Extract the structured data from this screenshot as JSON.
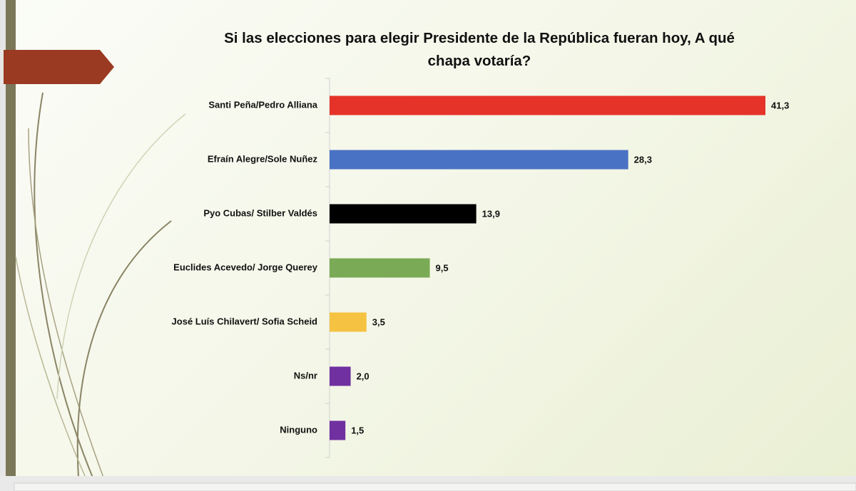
{
  "chart_data": {
    "type": "bar",
    "orientation": "horizontal",
    "title": "Si las elecciones para elegir Presidente de la República fueran hoy, A qué chapa votaría?",
    "categories": [
      "Santi Peña/Pedro Alliana",
      "Efraín Alegre/Sole Nuñez",
      "Pyo Cubas/ Stilber Valdés",
      "Euclides Acevedo/ Jorge Querey",
      "José Luís Chilavert/ Sofia Scheid",
      "Ns/nr",
      "Ninguno"
    ],
    "values": [
      41.3,
      28.3,
      13.9,
      9.5,
      3.5,
      2.0,
      1.5
    ],
    "value_labels": [
      "41,3",
      "28,3",
      "13,9",
      "9,5",
      "3,5",
      "2,0",
      "1,5"
    ],
    "colors": [
      "#e5332a",
      "#4a72c4",
      "#000000",
      "#7aaa55",
      "#f5c242",
      "#7030a0",
      "#7030a0"
    ]
  }
}
